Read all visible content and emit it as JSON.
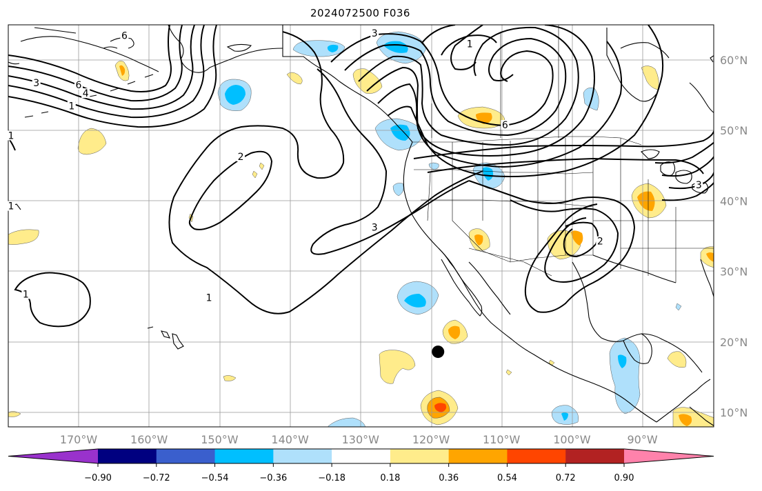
{
  "title": "2024072500 F036",
  "map": {
    "lat_labels": [
      {
        "lat": 60,
        "text": "60°N"
      },
      {
        "lat": 50,
        "text": "50°N"
      },
      {
        "lat": 40,
        "text": "40°N"
      },
      {
        "lat": 30,
        "text": "30°N"
      },
      {
        "lat": 20,
        "text": "20°N"
      },
      {
        "lat": 10,
        "text": "10°N"
      }
    ],
    "lon_labels": [
      {
        "lon": -170,
        "text": "170°W"
      },
      {
        "lon": -160,
        "text": "160°W"
      },
      {
        "lon": -150,
        "text": "150°W"
      },
      {
        "lon": -140,
        "text": "140°W"
      },
      {
        "lon": -130,
        "text": "130°W"
      },
      {
        "lon": -120,
        "text": "120°W"
      },
      {
        "lon": -110,
        "text": "110°W"
      },
      {
        "lon": -100,
        "text": "100°W"
      },
      {
        "lon": -90,
        "text": "90°W"
      }
    ],
    "storm_marker": {
      "lat": 18.6,
      "lon": -119.0
    },
    "contour_labels": [
      {
        "text": "3",
        "lat": 56.5,
        "lon": -176.0
      },
      {
        "text": "6",
        "lat": 56.2,
        "lon": -170.0
      },
      {
        "text": "4",
        "lat": 55.0,
        "lon": -169.0
      },
      {
        "text": "1",
        "lat": 53.2,
        "lon": -171.0
      },
      {
        "text": "6",
        "lat": 63.2,
        "lon": -163.5
      },
      {
        "text": "1",
        "lat": 49.0,
        "lon": -180.0
      },
      {
        "text": "3",
        "lat": 63.5,
        "lon": -128.0
      },
      {
        "text": "1",
        "lat": 62.0,
        "lon": -114.5
      },
      {
        "text": "6",
        "lat": 50.5,
        "lon": -109.5
      },
      {
        "text": "2",
        "lat": 46.0,
        "lon": -147.0
      },
      {
        "text": "3",
        "lat": 36.0,
        "lon": -128.0
      },
      {
        "text": "1",
        "lat": 26.0,
        "lon": -151.5
      },
      {
        "text": "1",
        "lat": 26.5,
        "lon": -177.5
      },
      {
        "text": "1",
        "lat": 39.0,
        "lon": -180.0
      },
      {
        "text": "2",
        "lat": 34.0,
        "lon": -96.0
      },
      {
        "text": "3",
        "lat": 42.0,
        "lon": -82.0
      }
    ]
  },
  "colorbar": {
    "ticks": [
      "−0.90",
      "−0.72",
      "−0.54",
      "−0.36",
      "−0.18",
      "0.18",
      "0.36",
      "0.54",
      "0.72",
      "0.90"
    ],
    "colors": [
      "#9932cc",
      "#000080",
      "#3a5fcd",
      "#00bfff",
      "#afe0fb",
      "#ffffff",
      "#ffec8b",
      "#ffa500",
      "#ff4500",
      "#b22222",
      "#ff82ab"
    ]
  }
}
